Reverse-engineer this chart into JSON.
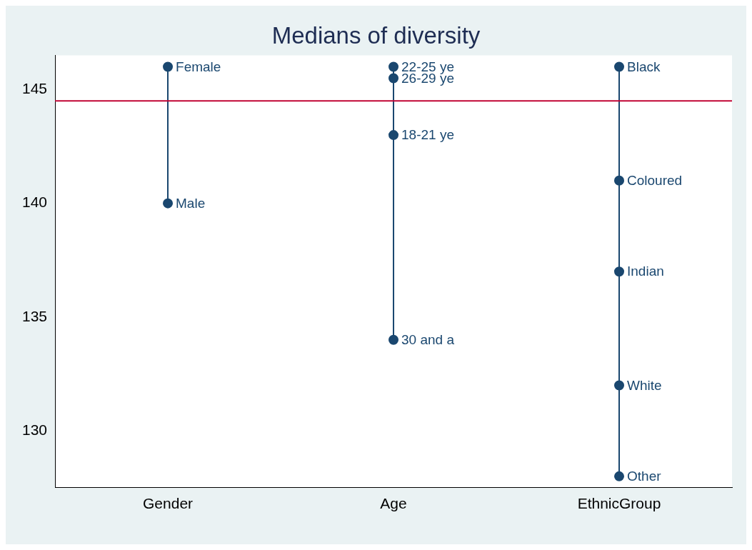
{
  "chart_data": {
    "type": "line",
    "title": "Medians of diversity",
    "categories": [
      "Gender",
      "Age",
      "EthnicGroup"
    ],
    "series": [
      {
        "color": "#1a476f",
        "x": [
          "Gender",
          "Gender"
        ],
        "values": [
          146,
          140
        ]
      },
      {
        "color": "#1a476f",
        "x": [
          "Age",
          "Age",
          "Age",
          "Age"
        ],
        "values": [
          146,
          145.5,
          143,
          134
        ]
      },
      {
        "color": "#1a476f",
        "x": [
          "EthnicGroup",
          "EthnicGroup",
          "EthnicGroup",
          "EthnicGroup",
          "EthnicGroup"
        ],
        "values": [
          146,
          141,
          137,
          132,
          128
        ]
      }
    ],
    "annotations": [
      {
        "text": "Female",
        "x": "Gender",
        "y": 146
      },
      {
        "text": "Male",
        "x": "Gender",
        "y": 140
      },
      {
        "text": "22-25 ye",
        "x": "Age",
        "y": 146
      },
      {
        "text": "26-29 ye",
        "x": "Age",
        "y": 145.5
      },
      {
        "text": "18-21 ye",
        "x": "Age",
        "y": 143
      },
      {
        "text": "30 and a",
        "x": "Age",
        "y": 134
      },
      {
        "text": "Black",
        "x": "EthnicGroup",
        "y": 146
      },
      {
        "text": "Coloured",
        "x": "EthnicGroup",
        "y": 141
      },
      {
        "text": "Indian",
        "x": "EthnicGroup",
        "y": 137
      },
      {
        "text": "White",
        "x": "EthnicGroup",
        "y": 132
      },
      {
        "text": "Other",
        "x": "EthnicGroup",
        "y": 128
      }
    ],
    "ylim": [
      127.5,
      146.5
    ],
    "yticks": [
      130,
      135,
      140,
      145
    ],
    "ref_lines": [
      {
        "axis": "y",
        "value": 144.5,
        "color": "#c10534"
      }
    ],
    "marker": "circle",
    "line_style": "solid",
    "grid": false,
    "legend": false
  }
}
